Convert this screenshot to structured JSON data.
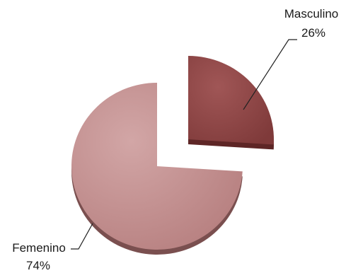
{
  "chart_data": {
    "type": "pie",
    "title": "",
    "exploded": true,
    "slices": [
      {
        "label": "Masculino",
        "value": 26,
        "value_label": "26%",
        "color": "#8e4646"
      },
      {
        "label": "Femenino",
        "value": 74,
        "value_label": "74%",
        "color": "#c28e8e"
      }
    ]
  }
}
